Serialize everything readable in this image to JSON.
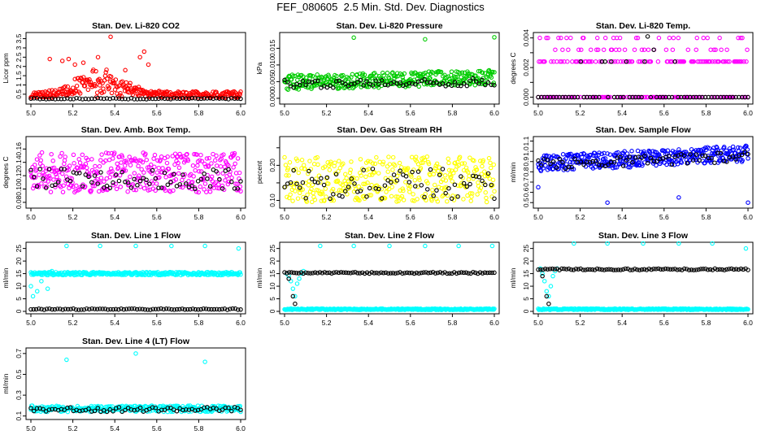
{
  "main_title": "FEF_080605  2.5 Min. Std. Dev. Diagnostics",
  "chart_data": [
    {
      "type": "scatter",
      "title": "Stan. Dev. Li-820 CO2",
      "ylabel": "Licor ppm",
      "xlim": [
        5.0,
        6.0
      ],
      "ylim": [
        0.1,
        3.7
      ],
      "xticks": [
        "5.0",
        "5.2",
        "5.4",
        "5.6",
        "5.8",
        "6.0"
      ],
      "yticks": [
        0.5,
        1.0,
        1.5,
        2.0,
        2.5,
        3.0,
        3.5
      ],
      "ytick_labels": [
        "0.5",
        "1",
        "1.5",
        "2",
        "2.5",
        "3",
        "3.5"
      ],
      "colors": [
        "#ff0000",
        "#000000"
      ],
      "grid": false,
      "series": [
        {
          "color": "#ff0000",
          "kind": "wide",
          "base": 0.3,
          "spread": 0.35,
          "n": 320,
          "bump": {
            "center": 5.33,
            "width": 0.15,
            "height": 0.9
          },
          "outliers": [
            [
              5.09,
              2.4
            ],
            [
              5.15,
              2.3
            ],
            [
              5.18,
              2.4
            ],
            [
              5.21,
              2.1
            ],
            [
              5.25,
              2.2
            ],
            [
              5.32,
              2.5
            ],
            [
              5.38,
              3.6
            ],
            [
              5.45,
              1.8
            ],
            [
              5.52,
              2.5
            ],
            [
              5.54,
              2.8
            ],
            [
              5.56,
              2.1
            ]
          ]
        },
        {
          "color": "#000000",
          "kind": "flat",
          "base": 0.26,
          "spread": 0.06,
          "n": 70
        }
      ]
    },
    {
      "type": "scatter",
      "title": "Stan. Dev. Li-820 Pressure",
      "ylabel": "kPa",
      "xlim": [
        5.0,
        6.0
      ],
      "ylim": [
        -0.001,
        0.019
      ],
      "xticks": [
        "5.0",
        "5.2",
        "5.4",
        "5.6",
        "5.8",
        "6.0"
      ],
      "yticks": [
        0.0,
        0.005,
        0.01,
        0.015
      ],
      "ytick_labels": [
        "0.000",
        "0.005",
        "0.010",
        "0.015"
      ],
      "colors": [
        "#00cc00",
        "#000000"
      ],
      "grid": false,
      "series": [
        {
          "color": "#00cc00",
          "kind": "band",
          "base": 0.0025,
          "spread": 0.0045,
          "n": 360,
          "ramp": 0.0015,
          "outliers": [
            [
              5.33,
              0.0182
            ],
            [
              5.67,
              0.0177
            ],
            [
              6.0,
              0.0183
            ]
          ]
        },
        {
          "color": "#000000",
          "kind": "band",
          "base": 0.003,
          "spread": 0.0025,
          "n": 70,
          "ramp": 0.0008
        }
      ]
    },
    {
      "type": "scatter",
      "title": "Stan. Dev. Li-820 Temp.",
      "ylabel": "degrees C",
      "xlim": [
        5.0,
        6.0
      ],
      "ylim": [
        -0.0003,
        0.0042
      ],
      "xticks": [
        "5.0",
        "5.2",
        "5.4",
        "5.6",
        "5.8",
        "6.0"
      ],
      "yticks": [
        0.0,
        0.001,
        0.002,
        0.003,
        0.004
      ],
      "ytick_labels": [
        "0.000",
        "",
        "0.002",
        "",
        "0.004"
      ],
      "colors": [
        "#ff00ff",
        "#000000"
      ],
      "grid": false,
      "series": [
        {
          "color": "#ff00ff",
          "kind": "levels",
          "levels": [
            0.0,
            0.0024,
            0.0032,
            0.004
          ],
          "weights": [
            0.45,
            0.35,
            0.12,
            0.08
          ],
          "n": 260
        },
        {
          "color": "#000000",
          "kind": "levels",
          "levels": [
            0.0,
            0.0024,
            0.0032,
            0.0041
          ],
          "weights": [
            0.75,
            0.2,
            0.04,
            0.01
          ],
          "n": 70
        }
      ]
    },
    {
      "type": "scatter",
      "title": "Stan. Dev. Amb. Box Temp.",
      "ylabel": "degrees C",
      "xlim": [
        5.0,
        6.0
      ],
      "ylim": [
        0.075,
        0.175
      ],
      "xticks": [
        "5.0",
        "5.2",
        "5.4",
        "5.6",
        "5.8",
        "6.0"
      ],
      "yticks": [
        0.08,
        0.1,
        0.12,
        0.14,
        0.16
      ],
      "ytick_labels": [
        "0.08",
        "0.10",
        "0.12",
        "0.14",
        "0.16"
      ],
      "colors": [
        "#ff00ff",
        "#000000"
      ],
      "grid": false,
      "series": [
        {
          "color": "#ff00ff",
          "kind": "band",
          "base": 0.095,
          "spread": 0.06,
          "n": 380,
          "ramp": 0.0
        },
        {
          "color": "#000000",
          "kind": "band",
          "base": 0.1,
          "spread": 0.03,
          "n": 70,
          "ramp": 0.0
        }
      ]
    },
    {
      "type": "scatter",
      "title": "Stan. Dev. Gas Stream RH",
      "ylabel": "percent",
      "xlim": [
        5.0,
        6.0
      ],
      "ylim": [
        0.085,
        0.275
      ],
      "xticks": [
        "5.0",
        "5.2",
        "5.4",
        "5.6",
        "5.8",
        "6.0"
      ],
      "yticks": [
        0.1,
        0.15,
        0.2,
        0.25
      ],
      "ytick_labels": [
        "0.10",
        "",
        "0.20",
        ""
      ],
      "colors": [
        "#ffff00",
        "#000000"
      ],
      "grid": false,
      "series": [
        {
          "color": "#ffff00",
          "kind": "band",
          "base": 0.095,
          "spread": 0.13,
          "n": 360,
          "ramp": 0.0
        },
        {
          "color": "#000000",
          "kind": "band",
          "base": 0.1,
          "spread": 0.09,
          "n": 70,
          "ramp": 0.0
        }
      ]
    },
    {
      "type": "scatter",
      "title": "Stan. Dev. Sample Flow",
      "ylabel": "ml/min",
      "xlim": [
        5.0,
        6.0
      ],
      "ylim": [
        0.47,
        1.12
      ],
      "xticks": [
        "5.0",
        "5.2",
        "5.4",
        "5.6",
        "5.8",
        "6.0"
      ],
      "yticks": [
        0.5,
        0.6,
        0.7,
        0.8,
        0.9,
        1.0,
        1.1
      ],
      "ytick_labels": [
        "0.5",
        "0.6",
        "0.7",
        "0.8",
        "0.9",
        "1.0",
        "1.1"
      ],
      "colors": [
        "#0000ff",
        "#000000"
      ],
      "grid": false,
      "series": [
        {
          "color": "#0000ff",
          "kind": "band",
          "base": 0.8,
          "spread": 0.16,
          "n": 380,
          "ramp": 0.1,
          "outliers": [
            [
              5.0,
              0.65
            ],
            [
              5.33,
              0.5
            ],
            [
              5.67,
              0.55
            ],
            [
              6.0,
              0.5
            ]
          ]
        },
        {
          "color": "#000000",
          "kind": "band",
          "base": 0.82,
          "spread": 0.1,
          "n": 70,
          "ramp": 0.08
        }
      ]
    },
    {
      "type": "scatter",
      "title": "Stan. Dev. Line 1 Flow",
      "ylabel": "ml/min",
      "xlim": [
        5.0,
        6.0
      ],
      "ylim": [
        0.0,
        26.5
      ],
      "xticks": [
        "5.0",
        "5.2",
        "5.4",
        "5.6",
        "5.8",
        "6.0"
      ],
      "yticks": [
        0,
        5,
        10,
        15,
        20,
        25
      ],
      "ytick_labels": [
        "0",
        "5",
        "10",
        "15",
        "20",
        "25"
      ],
      "colors": [
        "#00ffff",
        "#000000"
      ],
      "grid": false,
      "series": [
        {
          "color": "#00ffff",
          "kind": "band",
          "base": 14.4,
          "spread": 1.2,
          "n": 320,
          "ramp": 0.0,
          "outliers": [
            [
              5.0,
              10
            ],
            [
              5.01,
              6
            ],
            [
              5.03,
              8
            ],
            [
              5.05,
              12
            ],
            [
              5.08,
              9
            ],
            [
              5.1,
              16
            ],
            [
              5.17,
              26
            ],
            [
              5.33,
              26
            ],
            [
              5.5,
              26
            ],
            [
              5.67,
              26
            ],
            [
              5.83,
              26
            ],
            [
              5.99,
              25
            ]
          ]
        },
        {
          "color": "#000000",
          "kind": "band",
          "base": 0.6,
          "spread": 0.5,
          "n": 80,
          "ramp": 0.0
        }
      ]
    },
    {
      "type": "scatter",
      "title": "Stan. Dev. Line 2 Flow",
      "ylabel": "ml/min",
      "xlim": [
        5.0,
        6.0
      ],
      "ylim": [
        0.0,
        26.5
      ],
      "xticks": [
        "5.0",
        "5.2",
        "5.4",
        "5.6",
        "5.8",
        "6.0"
      ],
      "yticks": [
        0,
        5,
        10,
        15,
        20,
        25
      ],
      "ytick_labels": [
        "0",
        "5",
        "10",
        "15",
        "20",
        "25"
      ],
      "colors": [
        "#00ffff",
        "#000000"
      ],
      "grid": false,
      "series": [
        {
          "color": "#00ffff",
          "kind": "band",
          "base": 0.6,
          "spread": 0.5,
          "n": 320,
          "ramp": 0.0,
          "outliers": [
            [
              5.01,
              15
            ],
            [
              5.02,
              14
            ],
            [
              5.03,
              12
            ],
            [
              5.04,
              9
            ],
            [
              5.05,
              6
            ],
            [
              5.06,
              11
            ],
            [
              5.07,
              13
            ],
            [
              5.08,
              15
            ],
            [
              5.09,
              16
            ],
            [
              5.17,
              26
            ],
            [
              5.33,
              26
            ],
            [
              5.5,
              26
            ],
            [
              5.67,
              26
            ],
            [
              5.83,
              26
            ],
            [
              5.99,
              26
            ]
          ]
        },
        {
          "color": "#000000",
          "kind": "band",
          "base": 15.0,
          "spread": 0.6,
          "n": 90,
          "ramp": 0.0,
          "outliers": [
            [
              5.02,
              13
            ],
            [
              5.04,
              6
            ],
            [
              5.05,
              3
            ]
          ]
        }
      ]
    },
    {
      "type": "scatter",
      "title": "Stan. Dev. Line 3 Flow",
      "ylabel": "ml/min",
      "xlim": [
        5.0,
        6.0
      ],
      "ylim": [
        0.0,
        26.5
      ],
      "xticks": [
        "5.0",
        "5.2",
        "5.4",
        "5.6",
        "5.8",
        "6.0"
      ],
      "yticks": [
        0,
        5,
        10,
        15,
        20,
        25
      ],
      "ytick_labels": [
        "0",
        "5",
        "10",
        "15",
        "20",
        "25"
      ],
      "colors": [
        "#00ffff",
        "#000000"
      ],
      "grid": false,
      "series": [
        {
          "color": "#00ffff",
          "kind": "band",
          "base": 0.6,
          "spread": 0.5,
          "n": 320,
          "ramp": 0.0,
          "outliers": [
            [
              5.01,
              17
            ],
            [
              5.02,
              15
            ],
            [
              5.03,
              12
            ],
            [
              5.04,
              8
            ],
            [
              5.05,
              6
            ],
            [
              5.06,
              10
            ],
            [
              5.07,
              14
            ],
            [
              5.08,
              16
            ],
            [
              5.09,
              17
            ],
            [
              5.17,
              27
            ],
            [
              5.33,
              27
            ],
            [
              5.5,
              27
            ],
            [
              5.67,
              27
            ],
            [
              5.83,
              27
            ],
            [
              5.99,
              25
            ]
          ]
        },
        {
          "color": "#000000",
          "kind": "band",
          "base": 16.4,
          "spread": 0.6,
          "n": 90,
          "ramp": 0.0,
          "outliers": [
            [
              5.02,
              14
            ],
            [
              5.04,
              6
            ],
            [
              5.05,
              3
            ]
          ]
        }
      ]
    },
    {
      "type": "scatter",
      "title": "Stan. Dev. Line 4 (LT) Flow",
      "ylabel": "ml/min",
      "xlim": [
        5.0,
        6.0
      ],
      "ylim": [
        0.09,
        0.73
      ],
      "xticks": [
        "5.0",
        "5.2",
        "5.4",
        "5.6",
        "5.8",
        "6.0"
      ],
      "yticks": [
        0.1,
        0.3,
        0.5,
        0.7
      ],
      "ytick_labels": [
        "0.1",
        "0.3",
        "0.5",
        "0.7"
      ],
      "colors": [
        "#00ffff",
        "#000000"
      ],
      "grid": false,
      "series": [
        {
          "color": "#00ffff",
          "kind": "band",
          "base": 0.14,
          "spread": 0.06,
          "n": 320,
          "ramp": 0.0,
          "outliers": [
            [
              5.17,
              0.64
            ],
            [
              5.5,
              0.7
            ],
            [
              5.83,
              0.62
            ]
          ]
        },
        {
          "color": "#000000",
          "kind": "band",
          "base": 0.14,
          "spread": 0.045,
          "n": 70,
          "ramp": 0.0
        }
      ]
    }
  ]
}
